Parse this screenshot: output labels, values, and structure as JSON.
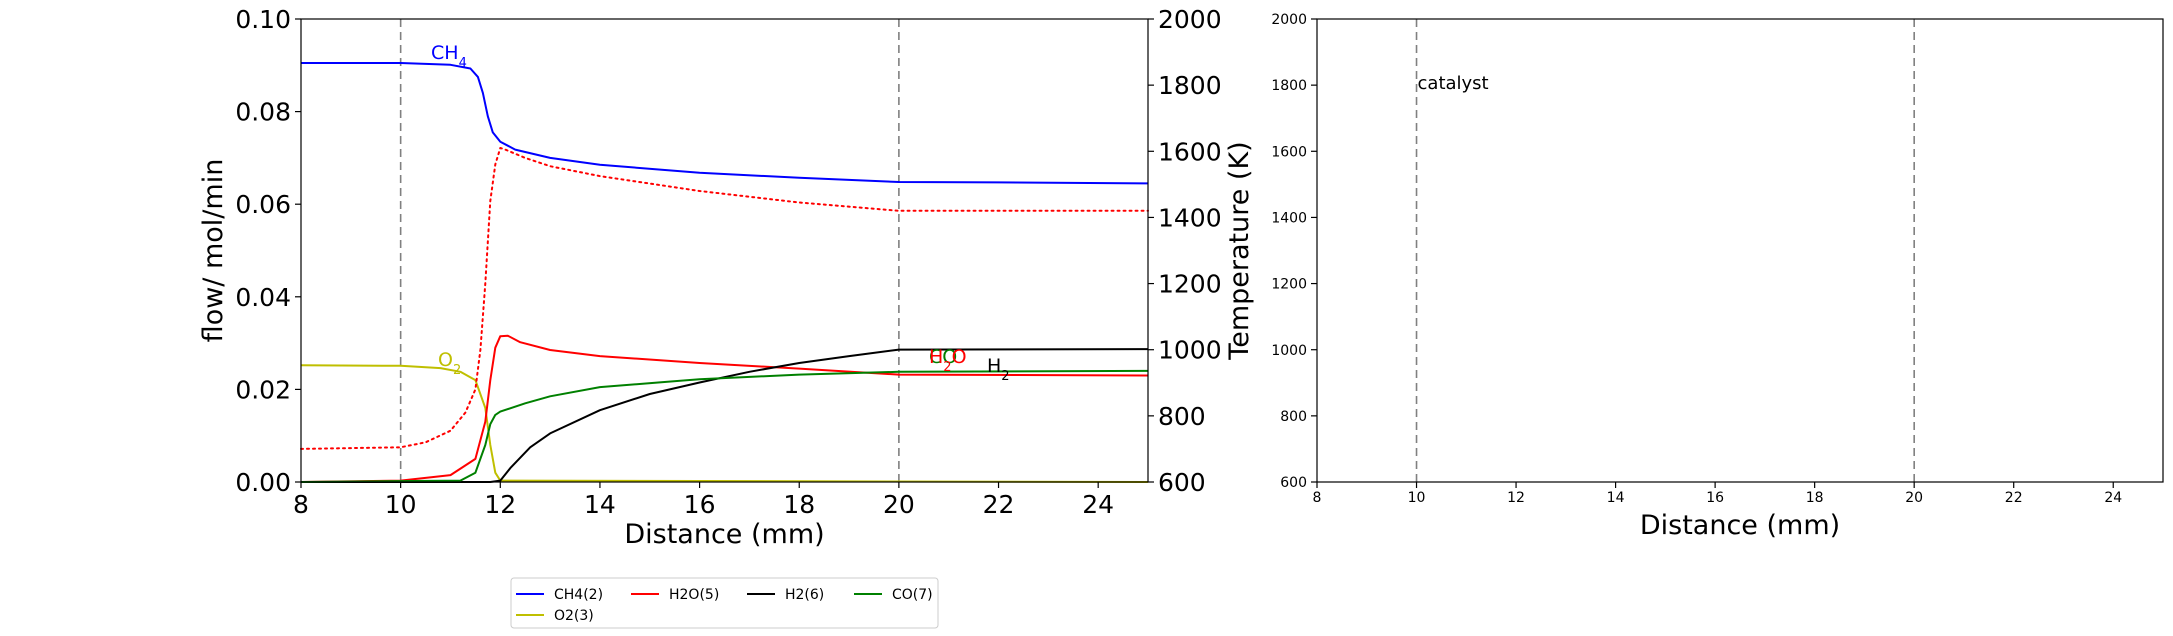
{
  "chart_data": [
    {
      "type": "line",
      "xlabel": "Distance (mm)",
      "ylabel": "flow/ mol/min",
      "ylabel_right": "Temperature (K)",
      "xlim": [
        8,
        25
      ],
      "ylim": [
        0,
        0.1
      ],
      "ylim_right": [
        600,
        2000
      ],
      "x_ticks": [
        8,
        10,
        12,
        14,
        16,
        18,
        20,
        22,
        24
      ],
      "y_ticks": [
        0.0,
        0.02,
        0.04,
        0.06,
        0.08,
        0.1
      ],
      "y_tick_labels": [
        "0.00",
        "0.02",
        "0.04",
        "0.06",
        "0.08",
        "0.10"
      ],
      "y_right_ticks": [
        600,
        800,
        1000,
        1200,
        1400,
        1600,
        1800,
        2000
      ],
      "vlines": [
        10,
        20
      ],
      "series": [
        {
          "name": "CH4(2)",
          "color": "#0000ff",
          "axis": "left",
          "x": [
            8,
            10,
            11,
            11.4,
            11.55,
            11.65,
            11.75,
            11.85,
            12,
            12.3,
            13,
            14,
            16,
            18,
            20,
            22,
            25
          ],
          "y": [
            0.0905,
            0.0905,
            0.0901,
            0.0893,
            0.0875,
            0.084,
            0.079,
            0.0755,
            0.0735,
            0.0718,
            0.07,
            0.0685,
            0.0668,
            0.0657,
            0.0648,
            0.0647,
            0.0645
          ]
        },
        {
          "name": "O2(3)",
          "color": "#bfbf00",
          "axis": "left",
          "x": [
            8,
            10,
            10.8,
            11.2,
            11.5,
            11.7,
            11.8,
            11.9,
            12,
            25
          ],
          "y": [
            0.0252,
            0.0251,
            0.0246,
            0.0238,
            0.022,
            0.016,
            0.008,
            0.002,
            0.0003,
            0
          ],
          "label": "O₂"
        },
        {
          "name": "H2O(5)",
          "color": "#ff0000",
          "axis": "left",
          "x": [
            8,
            10,
            11,
            11.5,
            11.7,
            11.8,
            11.9,
            12,
            12.15,
            12.4,
            13,
            14,
            16,
            18,
            20,
            25
          ],
          "y": [
            0,
            0.0003,
            0.0015,
            0.005,
            0.013,
            0.022,
            0.029,
            0.0315,
            0.0316,
            0.0302,
            0.0285,
            0.0272,
            0.0257,
            0.0245,
            0.0232,
            0.023
          ],
          "label": "H₂O"
        },
        {
          "name": "H2(6)",
          "color": "#000000",
          "axis": "left",
          "x": [
            8,
            11.8,
            12,
            12.2,
            12.6,
            13,
            14,
            15,
            16,
            17,
            18,
            19,
            20,
            25
          ],
          "y": [
            0,
            0,
            0.0003,
            0.003,
            0.0075,
            0.0105,
            0.0155,
            0.019,
            0.0215,
            0.0238,
            0.0257,
            0.0272,
            0.0286,
            0.0287
          ],
          "label": "H₂"
        },
        {
          "name": "CO(7)",
          "color": "#008000",
          "axis": "left",
          "x": [
            8,
            11.2,
            11.5,
            11.7,
            11.8,
            11.9,
            12,
            12.5,
            13,
            14,
            16,
            18,
            20,
            25
          ],
          "y": [
            0,
            0.0003,
            0.002,
            0.008,
            0.0125,
            0.0145,
            0.0152,
            0.017,
            0.0185,
            0.0205,
            0.0222,
            0.0232,
            0.0238,
            0.024
          ],
          "label": "CO"
        },
        {
          "name": "Temperature",
          "color": "#ff0000",
          "axis": "right",
          "dotted": true,
          "x": [
            8,
            10,
            10.5,
            11,
            11.3,
            11.5,
            11.6,
            11.7,
            11.8,
            11.9,
            12,
            12.1,
            12.5,
            13,
            14,
            16,
            18,
            20,
            25
          ],
          "y": [
            700,
            705,
            720,
            755,
            810,
            880,
            1000,
            1200,
            1450,
            1560,
            1610,
            1605,
            1580,
            1555,
            1525,
            1480,
            1445,
            1420,
            1420
          ]
        }
      ]
    },
    {
      "type": "line",
      "xlabel": "Distance (mm)",
      "xlim": [
        8,
        25
      ],
      "ylim": [
        600,
        2000
      ],
      "x_ticks": [
        8,
        10,
        12,
        14,
        16,
        18,
        20,
        22,
        24
      ],
      "y_ticks": [
        600,
        800,
        1000,
        1200,
        1400,
        1600,
        1800,
        2000
      ],
      "vlines": [
        10,
        20
      ],
      "annotation": {
        "text": "catalyst",
        "x": 10,
        "y": 1800
      },
      "series": []
    }
  ],
  "legend": {
    "entries": [
      {
        "label": "CH4(2)",
        "color": "#0000ff"
      },
      {
        "label": "H2O(5)",
        "color": "#ff0000"
      },
      {
        "label": "H2(6)",
        "color": "#000000"
      },
      {
        "label": "CO(7)",
        "color": "#008000"
      },
      {
        "label": "O2(3)",
        "color": "#bfbf00"
      }
    ],
    "placement": "bottom-center"
  },
  "inline_labels": {
    "ch4": "CH4",
    "o2": "O2",
    "h2o": "H2O",
    "h2": "H2"
  }
}
